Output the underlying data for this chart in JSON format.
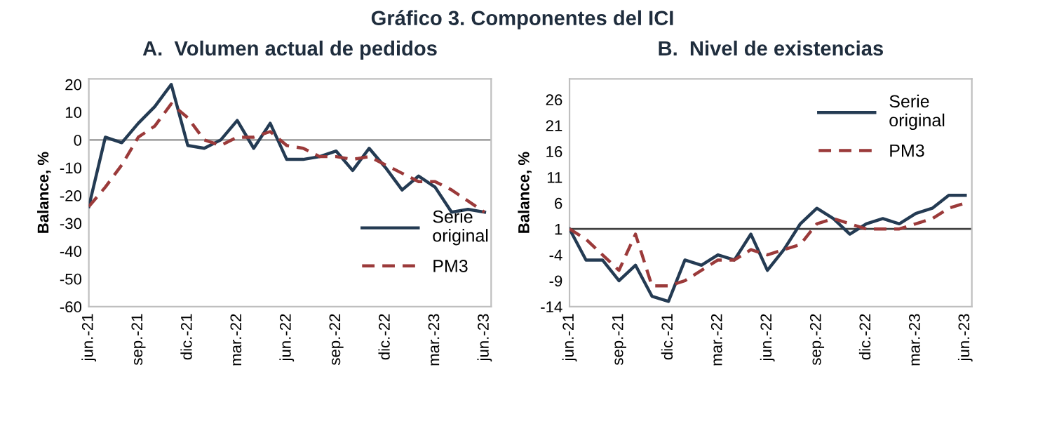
{
  "chart_data": [
    {
      "type": "line",
      "title": "A.  Volumen actual de pedidos",
      "ylabel": "Balance, %",
      "annotations": [
        "Gráfico 3. Componentes del ICI"
      ],
      "categories": [
        "jun.-21",
        null,
        null,
        "sep.-21",
        null,
        null,
        "dic.-21",
        null,
        null,
        "mar.-22",
        null,
        null,
        "jun.-22",
        null,
        null,
        "sep.-22",
        null,
        null,
        "dic.-22",
        null,
        null,
        "mar.-23",
        null,
        null,
        "jun.-23"
      ],
      "series": [
        {
          "name": "Serie original",
          "color": "#243b53",
          "line_style": "solid",
          "values": [
            -24,
            1,
            -1,
            6,
            12,
            20,
            -2,
            -3,
            0,
            7,
            -3,
            6,
            -7,
            -7,
            -6,
            -4,
            -11,
            -3,
            -10,
            -18,
            -13,
            -17,
            -26,
            -25,
            -26
          ]
        },
        {
          "name": "PM3",
          "color": "#9b3a3a",
          "line_style": "dashed",
          "values": [
            -24,
            -17,
            -9,
            1,
            5,
            13,
            8,
            0,
            -2,
            1,
            1,
            3,
            -2,
            -3,
            -6,
            -6,
            -7,
            -6,
            -9,
            -12,
            -15,
            -15,
            -18,
            -22,
            -26
          ]
        }
      ],
      "ylim": [
        -60,
        22
      ],
      "yticks": [
        -60,
        -50,
        -40,
        -30,
        -20,
        -10,
        0,
        10,
        20
      ],
      "grid": false,
      "legend": "right",
      "marker": "none",
      "ref_lines": [
        {
          "axis": "y",
          "value": 0,
          "color": "#a6a6a6"
        }
      ]
    },
    {
      "type": "line",
      "title": "B.  Nivel de existencias",
      "ylabel": "Balance, %",
      "categories": [
        "jun.-21",
        null,
        null,
        "sep.-21",
        null,
        null,
        "dic.-21",
        null,
        null,
        "mar.-22",
        null,
        null,
        "jun.-22",
        null,
        null,
        "sep.-22",
        null,
        null,
        "dic.-22",
        null,
        null,
        "mar.-23",
        null,
        null,
        "jun.-23"
      ],
      "series": [
        {
          "name": "Serie original",
          "color": "#243b53",
          "line_style": "solid",
          "values": [
            1,
            -5,
            -5,
            -9,
            -6,
            -12,
            -13,
            -5,
            -6,
            -4,
            -5,
            0,
            -7,
            -3,
            2,
            5,
            3,
            0,
            2,
            3,
            2,
            4,
            5,
            7.5,
            7.5
          ]
        },
        {
          "name": "PM3",
          "color": "#9b3a3a",
          "line_style": "dashed",
          "values": [
            1,
            -1,
            -4,
            -7,
            0,
            -10,
            -10,
            -9,
            -7,
            -5,
            -5,
            -3,
            -4,
            -3,
            -2,
            2,
            3,
            2,
            1,
            1,
            1,
            2,
            3,
            5,
            6
          ]
        }
      ],
      "ylim": [
        -14,
        30
      ],
      "yticks": [
        -14,
        -9,
        -4,
        1,
        6,
        11,
        16,
        21,
        26
      ],
      "grid": false,
      "legend": "top right",
      "marker": "none",
      "ref_lines": [
        {
          "axis": "y",
          "value": 1,
          "color": "#404040"
        }
      ]
    }
  ]
}
